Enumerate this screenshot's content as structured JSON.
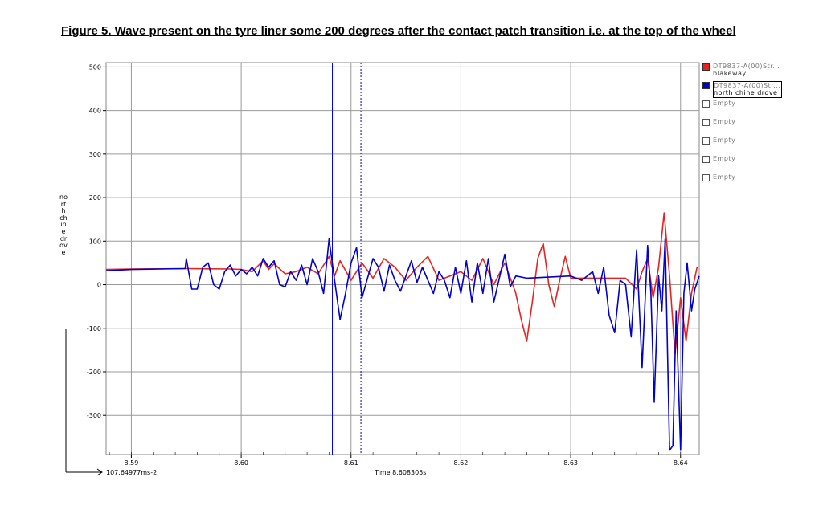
{
  "figure_title": "Figure 5. Wave present on the tyre liner some 200 degrees after the contact patch transition i.e. at the top of the wheel",
  "legend": [
    {
      "label": "DT9837-A(00)Str...",
      "sub": "blakeway",
      "color": "#e8231f",
      "selected": false
    },
    {
      "label": "DT9837-A(00)Str...",
      "sub": "north chine drove",
      "color": "#0000d0",
      "selected": true
    },
    {
      "label": "Empty",
      "sub": "",
      "color": "",
      "selected": false
    },
    {
      "label": "Empty",
      "sub": "",
      "color": "",
      "selected": false
    },
    {
      "label": "Empty",
      "sub": "",
      "color": "",
      "selected": false
    },
    {
      "label": "Empty",
      "sub": "",
      "color": "",
      "selected": false
    },
    {
      "label": "Empty",
      "sub": "",
      "color": "",
      "selected": false
    }
  ],
  "y_axis_label": "north chine drove",
  "x_axis_readout": "Time 8.608305s",
  "x_offset_readout": "107.64977ms-2",
  "cursor_time": 8.6083,
  "cursor2_time": 8.6109,
  "chart_data": {
    "type": "line",
    "xlim": [
      8.5877,
      8.6417
    ],
    "ylim": [
      -390,
      510
    ],
    "x_ticks": [
      8.59,
      8.6,
      8.61,
      8.62,
      8.63,
      8.64
    ],
    "x_tick_labels": [
      "8.59",
      "8.60",
      "8.61",
      "8.62",
      "8.63",
      "8.64"
    ],
    "y_ticks": [
      500,
      400,
      300,
      200,
      100,
      0,
      -100,
      -200,
      -300
    ],
    "y_tick_labels": [
      "500",
      "400",
      "300",
      "200",
      "100",
      "0",
      "-100",
      "-200",
      "-300"
    ],
    "grid": true,
    "series": [
      {
        "name": "blakeway",
        "color": "#e8231f",
        "x": [
          8.5877,
          8.59,
          8.595,
          8.599,
          8.6,
          8.601,
          8.602,
          8.6025,
          8.603,
          8.604,
          8.605,
          8.606,
          8.607,
          8.608,
          8.6085,
          8.609,
          8.61,
          8.611,
          8.612,
          8.613,
          8.614,
          8.615,
          8.616,
          8.617,
          8.618,
          8.619,
          8.62,
          8.621,
          8.622,
          8.623,
          8.624,
          8.625,
          8.6255,
          8.626,
          8.6265,
          8.627,
          8.6275,
          8.628,
          8.6285,
          8.629,
          8.6295,
          8.63,
          8.635,
          8.636,
          8.6365,
          8.637,
          8.6375,
          8.638,
          8.6385,
          8.639,
          8.6395,
          8.64,
          8.6405,
          8.641,
          8.6415
        ],
        "y": [
          35,
          36,
          37,
          36,
          35,
          30,
          55,
          35,
          48,
          25,
          30,
          40,
          25,
          65,
          20,
          55,
          10,
          50,
          15,
          60,
          40,
          10,
          40,
          65,
          10,
          20,
          30,
          10,
          60,
          0,
          50,
          -20,
          -80,
          -130,
          -40,
          60,
          95,
          0,
          -50,
          10,
          65,
          15,
          15,
          -10,
          30,
          60,
          -30,
          40,
          165,
          20,
          -160,
          -30,
          -130,
          -20,
          40
        ]
      },
      {
        "name": "north chine drove",
        "color": "#0000d0",
        "x": [
          8.5877,
          8.59,
          8.5949,
          8.595,
          8.5955,
          8.596,
          8.5965,
          8.597,
          8.5975,
          8.598,
          8.5985,
          8.599,
          8.5995,
          8.6,
          8.6005,
          8.601,
          8.6015,
          8.602,
          8.6025,
          8.603,
          8.6035,
          8.604,
          8.6045,
          8.605,
          8.6055,
          8.606,
          8.6065,
          8.607,
          8.6075,
          8.608,
          8.6085,
          8.609,
          8.6095,
          8.61,
          8.6105,
          8.611,
          8.6115,
          8.612,
          8.6125,
          8.613,
          8.6135,
          8.614,
          8.6145,
          8.615,
          8.6155,
          8.616,
          8.6165,
          8.617,
          8.6175,
          8.618,
          8.6185,
          8.619,
          8.6195,
          8.62,
          8.6205,
          8.621,
          8.6215,
          8.622,
          8.6225,
          8.623,
          8.6235,
          8.624,
          8.6245,
          8.625,
          8.626,
          8.63,
          8.631,
          8.632,
          8.6325,
          8.633,
          8.6335,
          8.634,
          8.6345,
          8.635,
          8.6355,
          8.636,
          8.6365,
          8.637,
          8.6373,
          8.6376,
          8.638,
          8.6383,
          8.6386,
          8.639,
          8.6393,
          8.6396,
          8.64,
          8.6403,
          8.6406,
          8.641,
          8.6413,
          8.6417
        ],
        "y": [
          32,
          35,
          37,
          60,
          -10,
          -10,
          40,
          50,
          0,
          -10,
          30,
          45,
          20,
          35,
          25,
          40,
          20,
          60,
          40,
          55,
          0,
          -5,
          30,
          10,
          45,
          0,
          60,
          30,
          -20,
          105,
          10,
          -80,
          -20,
          50,
          85,
          -30,
          15,
          60,
          40,
          -15,
          45,
          10,
          -15,
          20,
          55,
          5,
          40,
          10,
          -20,
          30,
          10,
          -30,
          40,
          -20,
          55,
          -40,
          50,
          -20,
          60,
          -40,
          15,
          70,
          -5,
          20,
          15,
          20,
          10,
          30,
          -20,
          40,
          -70,
          -110,
          10,
          0,
          -120,
          80,
          -190,
          90,
          -20,
          -270,
          20,
          -60,
          105,
          -380,
          -370,
          -60,
          -380,
          -20,
          50,
          -60,
          -10,
          20
        ]
      }
    ]
  }
}
